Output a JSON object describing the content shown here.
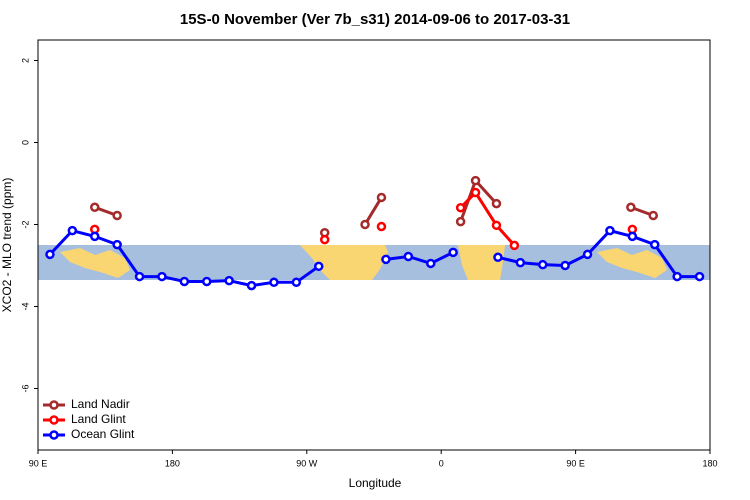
{
  "chart_data": {
    "type": "line",
    "title": "15S-0 November (Ver 7b_s31)   2014-09-06 to 2017-03-31",
    "xlabel": "Longitude",
    "ylabel": "XCO2 - MLO trend (ppm)",
    "xlim": [
      90,
      540
    ],
    "ylim": [
      -7.5,
      2.5
    ],
    "xticks": [
      {
        "value": 90,
        "label": "90 E"
      },
      180,
      {
        "value": 270,
        "label": "90 W"
      },
      {
        "value": 360,
        "label": "0"
      },
      {
        "value": 450,
        "label": "90 E"
      },
      {
        "value": 540,
        "label": "180"
      }
    ],
    "yticks": [
      2,
      0,
      -2,
      -4,
      -6
    ],
    "legend": "bottom-left",
    "series": [
      {
        "name": "Land Nadir",
        "color": "#a52a2a",
        "x": [
          128,
          143,
          null,
          282,
          null,
          309,
          320,
          null,
          373,
          383,
          397,
          null,
          487,
          502
        ],
        "values": [
          -1.58,
          -1.78,
          null,
          -2.2,
          null,
          -2.0,
          -1.34,
          null,
          -1.93,
          -0.93,
          -1.49,
          null,
          -1.58,
          -1.78
        ]
      },
      {
        "name": "Land Glint",
        "color": "#ff0000",
        "x": [
          128,
          null,
          282,
          null,
          320,
          null,
          373,
          383,
          397,
          409,
          null,
          488
        ],
        "values": [
          -2.12,
          null,
          -2.37,
          null,
          -2.05,
          null,
          -1.59,
          -1.22,
          -2.02,
          -2.51,
          null,
          -2.12
        ]
      },
      {
        "name": "Ocean Glint",
        "color": "#0000ff",
        "x": [
          98,
          113,
          128,
          143,
          158,
          173,
          188,
          203,
          218,
          233,
          248,
          263,
          278,
          null,
          323,
          338,
          353,
          368,
          null,
          398,
          413,
          428,
          443,
          458,
          473,
          488,
          503,
          518,
          533
        ],
        "values": [
          -2.73,
          -2.15,
          -2.29,
          -2.49,
          -3.27,
          -3.27,
          -3.39,
          -3.39,
          -3.37,
          -3.49,
          -3.41,
          -3.41,
          -3.02,
          null,
          -2.85,
          -2.78,
          -2.95,
          -2.68,
          null,
          -2.8,
          -2.93,
          -2.98,
          -3.0,
          -2.73,
          -2.15,
          -2.29,
          -2.49,
          -3.27,
          -3.27
        ]
      }
    ]
  }
}
